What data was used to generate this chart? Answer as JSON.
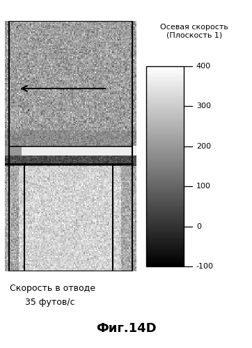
{
  "title_colorbar": "Осевая скорость\n(Плоскость 1)",
  "colorbar_min": -100,
  "colorbar_max": 400,
  "colorbar_ticks": [
    -100,
    0,
    100,
    200,
    300,
    400
  ],
  "caption_line1": "Скорость в отводе",
  "caption_line2": "35 футов/с",
  "fig_label": "Фиг.14D",
  "background_color": "#ffffff",
  "fig_width": 3.62,
  "fig_height": 4.99,
  "flow_noise_seed": 42
}
